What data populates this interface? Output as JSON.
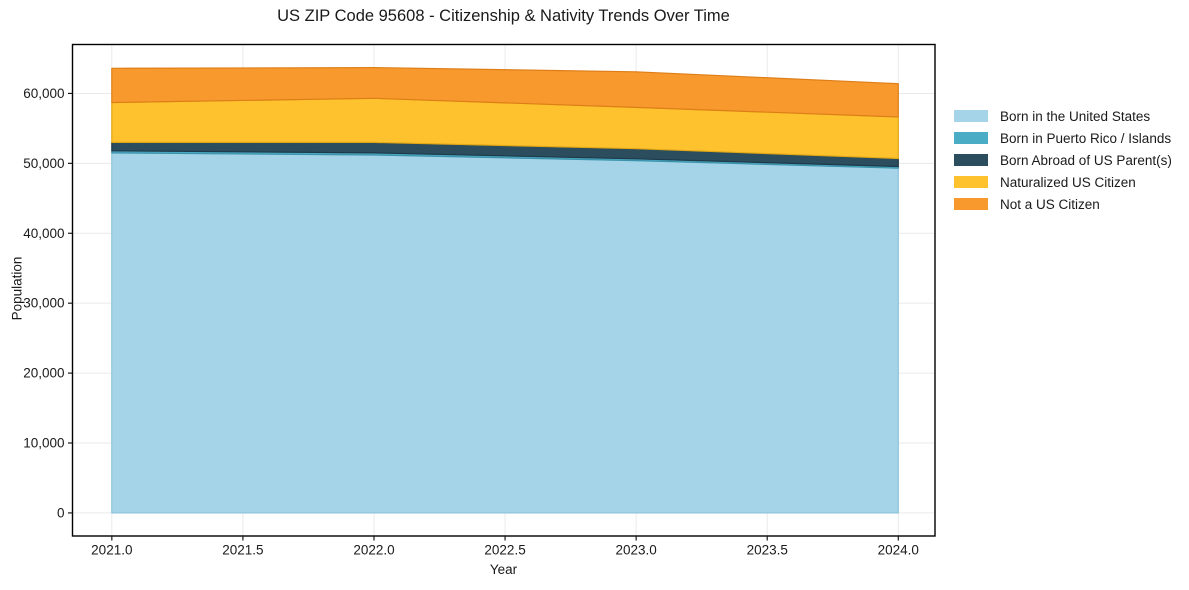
{
  "chart_data": {
    "type": "area",
    "stacked": true,
    "title": "US ZIP Code 95608 - Citizenship & Nativity Trends Over Time",
    "xlabel": "Year",
    "ylabel": "Population",
    "x": [
      2021,
      2022,
      2023,
      2024
    ],
    "series": [
      {
        "name": "Born in the United States",
        "color": "#A5D4E8",
        "edge": "#8DC4DC",
        "values": [
          51500,
          51200,
          50400,
          49300
        ]
      },
      {
        "name": "Born in Puerto Rico / Islands",
        "color": "#4BACC6",
        "edge": "#3D93AB",
        "values": [
          300,
          300,
          250,
          250
        ]
      },
      {
        "name": "Born Abroad of US Parent(s)",
        "color": "#2B4D5E",
        "edge": "#1F3A48",
        "values": [
          1200,
          1500,
          1450,
          1150
        ]
      },
      {
        "name": "Naturalized US Citizen",
        "color": "#FDC22D",
        "edge": "#E2A715",
        "values": [
          5700,
          6300,
          5900,
          5950
        ]
      },
      {
        "name": "Not a US Citizen",
        "color": "#F8992E",
        "edge": "#DE7E18",
        "values": [
          4900,
          4400,
          5100,
          4750
        ]
      }
    ],
    "xlim": [
      2020.85,
      2024.14
    ],
    "ylim": [
      -3300,
      67000
    ],
    "xticks": [
      {
        "v": 2021.0,
        "label": "2021.0"
      },
      {
        "v": 2021.5,
        "label": "2021.5"
      },
      {
        "v": 2022.0,
        "label": "2022.0"
      },
      {
        "v": 2022.5,
        "label": "2022.5"
      },
      {
        "v": 2023.0,
        "label": "2023.0"
      },
      {
        "v": 2023.5,
        "label": "2023.5"
      },
      {
        "v": 2024.0,
        "label": "2024.0"
      }
    ],
    "yticks": [
      {
        "v": 0,
        "label": "0"
      },
      {
        "v": 10000,
        "label": "10,000"
      },
      {
        "v": 20000,
        "label": "20,000"
      },
      {
        "v": 30000,
        "label": "30,000"
      },
      {
        "v": 40000,
        "label": "40,000"
      },
      {
        "v": 50000,
        "label": "50,000"
      },
      {
        "v": 60000,
        "label": "60,000"
      }
    ],
    "grid": true,
    "grid_color": "#eaeaea",
    "spine_color": "#000000",
    "tick_color": "#1a1a1a",
    "legend_position": "right"
  }
}
